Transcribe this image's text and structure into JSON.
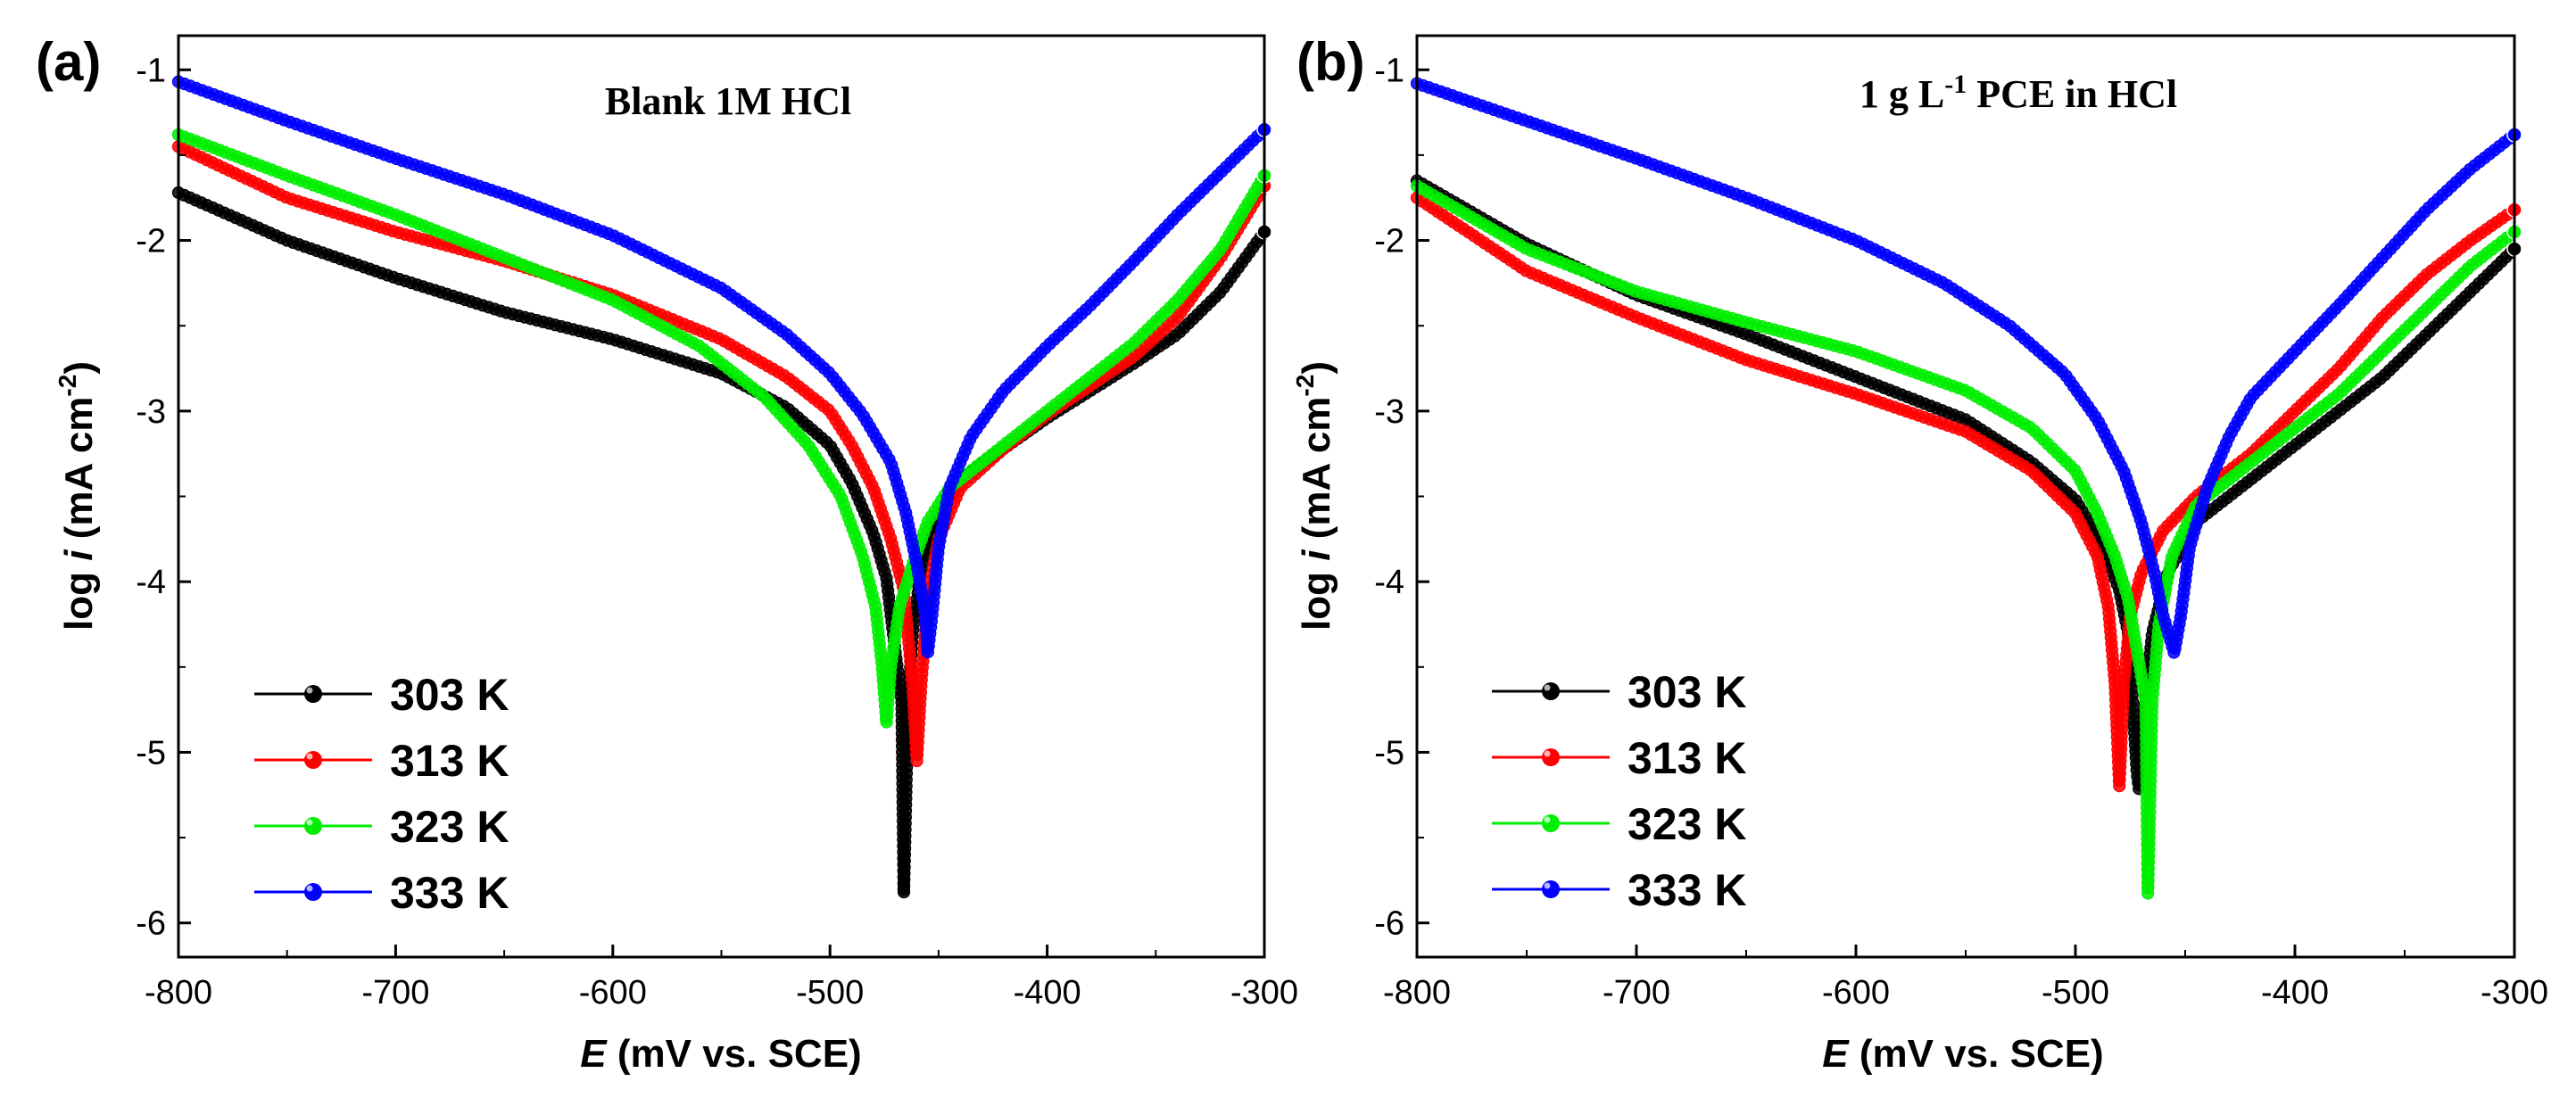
{
  "chart_data": [
    {
      "type": "scatter",
      "panel_label": "(a)",
      "title": "Blank 1M HCl",
      "xlabel_italic": "E",
      "xlabel_rest": " (mV vs. SCE)",
      "ylabel_prefix": "log ",
      "ylabel_italic": "i",
      "ylabel_rest": " (mA cm",
      "ylabel_sup": "-2",
      "ylabel_end": ")",
      "xlim": [
        -800,
        -300
      ],
      "ylim": [
        -6.2,
        -0.8
      ],
      "xticks": [
        -800,
        -700,
        -600,
        -500,
        -400,
        -300
      ],
      "yticks": [
        -6,
        -5,
        -4,
        -3,
        -2,
        -1
      ],
      "xtick_labels": [
        "-800",
        "-700",
        "-600",
        "-500",
        "-400",
        "-300"
      ],
      "ytick_labels": [
        "-6",
        "-5",
        "-4",
        "-3",
        "-2",
        "-1"
      ],
      "legend_position": "bottom-left",
      "series": [
        {
          "name": "303 K",
          "color": "#000000",
          "points": [
            [
              -800,
              -1.72
            ],
            [
              -750,
              -2.0
            ],
            [
              -700,
              -2.22
            ],
            [
              -650,
              -2.42
            ],
            [
              -600,
              -2.58
            ],
            [
              -550,
              -2.78
            ],
            [
              -520,
              -2.98
            ],
            [
              -500,
              -3.2
            ],
            [
              -490,
              -3.42
            ],
            [
              -480,
              -3.72
            ],
            [
              -474,
              -3.98
            ],
            [
              -470,
              -4.4
            ],
            [
              -467,
              -4.7
            ],
            [
              -466,
              -5.83
            ],
            [
              -464,
              -4.7
            ],
            [
              -462,
              -4.3
            ],
            [
              -458,
              -3.92
            ],
            [
              -450,
              -3.6
            ],
            [
              -440,
              -3.4
            ],
            [
              -420,
              -3.22
            ],
            [
              -400,
              -3.04
            ],
            [
              -380,
              -2.88
            ],
            [
              -360,
              -2.72
            ],
            [
              -340,
              -2.55
            ],
            [
              -320,
              -2.3
            ],
            [
              -300,
              -1.95
            ]
          ]
        },
        {
          "name": "313 K",
          "color": "#ff0000",
          "points": [
            [
              -800,
              -1.45
            ],
            [
              -750,
              -1.75
            ],
            [
              -700,
              -1.95
            ],
            [
              -650,
              -2.12
            ],
            [
              -600,
              -2.32
            ],
            [
              -550,
              -2.58
            ],
            [
              -520,
              -2.8
            ],
            [
              -500,
              -3.0
            ],
            [
              -490,
              -3.2
            ],
            [
              -480,
              -3.45
            ],
            [
              -472,
              -3.75
            ],
            [
              -466,
              -4.05
            ],
            [
              -462,
              -4.6
            ],
            [
              -460,
              -5.05
            ],
            [
              -458,
              -4.6
            ],
            [
              -455,
              -4.1
            ],
            [
              -450,
              -3.75
            ],
            [
              -440,
              -3.45
            ],
            [
              -420,
              -3.22
            ],
            [
              -400,
              -3.02
            ],
            [
              -380,
              -2.85
            ],
            [
              -360,
              -2.68
            ],
            [
              -340,
              -2.45
            ],
            [
              -320,
              -2.1
            ],
            [
              -300,
              -1.68
            ]
          ]
        },
        {
          "name": "323 K",
          "color": "#00ee00",
          "points": [
            [
              -800,
              -1.38
            ],
            [
              -750,
              -1.62
            ],
            [
              -700,
              -1.85
            ],
            [
              -650,
              -2.1
            ],
            [
              -600,
              -2.35
            ],
            [
              -560,
              -2.62
            ],
            [
              -530,
              -2.92
            ],
            [
              -510,
              -3.2
            ],
            [
              -495,
              -3.5
            ],
            [
              -485,
              -3.85
            ],
            [
              -479,
              -4.15
            ],
            [
              -476,
              -4.5
            ],
            [
              -474,
              -4.83
            ],
            [
              -472,
              -4.5
            ],
            [
              -468,
              -4.15
            ],
            [
              -462,
              -3.9
            ],
            [
              -455,
              -3.65
            ],
            [
              -445,
              -3.45
            ],
            [
              -420,
              -3.2
            ],
            [
              -400,
              -3.0
            ],
            [
              -380,
              -2.8
            ],
            [
              -360,
              -2.6
            ],
            [
              -340,
              -2.35
            ],
            [
              -320,
              -2.05
            ],
            [
              -300,
              -1.62
            ]
          ]
        },
        {
          "name": "333 K",
          "color": "#0000ff",
          "points": [
            [
              -800,
              -1.07
            ],
            [
              -750,
              -1.3
            ],
            [
              -700,
              -1.52
            ],
            [
              -650,
              -1.73
            ],
            [
              -600,
              -1.97
            ],
            [
              -550,
              -2.28
            ],
            [
              -520,
              -2.55
            ],
            [
              -500,
              -2.78
            ],
            [
              -485,
              -3.02
            ],
            [
              -472,
              -3.3
            ],
            [
              -465,
              -3.6
            ],
            [
              -460,
              -3.9
            ],
            [
              -456,
              -4.2
            ],
            [
              -455,
              -4.42
            ],
            [
              -453,
              -4.2
            ],
            [
              -450,
              -3.8
            ],
            [
              -445,
              -3.45
            ],
            [
              -435,
              -3.15
            ],
            [
              -420,
              -2.88
            ],
            [
              -400,
              -2.62
            ],
            [
              -380,
              -2.38
            ],
            [
              -360,
              -2.12
            ],
            [
              -340,
              -1.85
            ],
            [
              -320,
              -1.6
            ],
            [
              -300,
              -1.35
            ]
          ]
        }
      ]
    },
    {
      "type": "scatter",
      "panel_label": "(b)",
      "title_pre": "1 g L",
      "title_sup": "-1",
      "title_post": " PCE in HCl",
      "xlabel_italic": "E",
      "xlabel_rest": " (mV vs. SCE)",
      "ylabel_prefix": "log ",
      "ylabel_italic": "i",
      "ylabel_rest": " (mA cm",
      "ylabel_sup": "-2",
      "ylabel_end": ")",
      "xlim": [
        -800,
        -300
      ],
      "ylim": [
        -6.2,
        -0.8
      ],
      "xticks": [
        -800,
        -700,
        -600,
        -500,
        -400,
        -300
      ],
      "yticks": [
        -6,
        -5,
        -4,
        -3,
        -2,
        -1
      ],
      "xtick_labels": [
        "-800",
        "-700",
        "-600",
        "-500",
        "-400",
        "-300"
      ],
      "ytick_labels": [
        "-6",
        "-5",
        "-4",
        "-3",
        "-2",
        "-1"
      ],
      "legend_position": "bottom-left",
      "series": [
        {
          "name": "303 K",
          "color": "#000000",
          "points": [
            [
              -800,
              -1.65
            ],
            [
              -750,
              -2.02
            ],
            [
              -700,
              -2.32
            ],
            [
              -650,
              -2.55
            ],
            [
              -600,
              -2.8
            ],
            [
              -550,
              -3.05
            ],
            [
              -520,
              -3.3
            ],
            [
              -500,
              -3.52
            ],
            [
              -488,
              -3.78
            ],
            [
              -480,
              -4.05
            ],
            [
              -476,
              -4.3
            ],
            [
              -474,
              -4.7
            ],
            [
              -472,
              -5.12
            ],
            [
              -471,
              -5.22
            ],
            [
              -469,
              -4.8
            ],
            [
              -465,
              -4.3
            ],
            [
              -458,
              -3.95
            ],
            [
              -445,
              -3.65
            ],
            [
              -420,
              -3.4
            ],
            [
              -400,
              -3.2
            ],
            [
              -380,
              -3.0
            ],
            [
              -360,
              -2.8
            ],
            [
              -340,
              -2.55
            ],
            [
              -320,
              -2.3
            ],
            [
              -300,
              -2.05
            ]
          ]
        },
        {
          "name": "313 K",
          "color": "#ff0000",
          "points": [
            [
              -800,
              -1.75
            ],
            [
              -750,
              -2.18
            ],
            [
              -700,
              -2.45
            ],
            [
              -650,
              -2.7
            ],
            [
              -600,
              -2.9
            ],
            [
              -550,
              -3.12
            ],
            [
              -520,
              -3.35
            ],
            [
              -500,
              -3.6
            ],
            [
              -490,
              -3.85
            ],
            [
              -485,
              -4.15
            ],
            [
              -482,
              -4.6
            ],
            [
              -480,
              -5.2
            ],
            [
              -478,
              -4.6
            ],
            [
              -475,
              -4.2
            ],
            [
              -470,
              -3.95
            ],
            [
              -460,
              -3.7
            ],
            [
              -445,
              -3.5
            ],
            [
              -420,
              -3.25
            ],
            [
              -400,
              -3.0
            ],
            [
              -380,
              -2.75
            ],
            [
              -360,
              -2.45
            ],
            [
              -340,
              -2.2
            ],
            [
              -320,
              -2.0
            ],
            [
              -300,
              -1.82
            ]
          ]
        },
        {
          "name": "323 K",
          "color": "#00ee00",
          "points": [
            [
              -800,
              -1.68
            ],
            [
              -750,
              -2.05
            ],
            [
              -700,
              -2.3
            ],
            [
              -650,
              -2.48
            ],
            [
              -600,
              -2.65
            ],
            [
              -550,
              -2.88
            ],
            [
              -520,
              -3.1
            ],
            [
              -500,
              -3.35
            ],
            [
              -490,
              -3.6
            ],
            [
              -482,
              -3.85
            ],
            [
              -476,
              -4.1
            ],
            [
              -472,
              -4.4
            ],
            [
              -468,
              -4.7
            ],
            [
              -467,
              -5.83
            ],
            [
              -465,
              -4.7
            ],
            [
              -462,
              -4.25
            ],
            [
              -456,
              -3.85
            ],
            [
              -445,
              -3.55
            ],
            [
              -420,
              -3.3
            ],
            [
              -400,
              -3.1
            ],
            [
              -380,
              -2.9
            ],
            [
              -360,
              -2.65
            ],
            [
              -340,
              -2.4
            ],
            [
              -320,
              -2.15
            ],
            [
              -300,
              -1.95
            ]
          ]
        },
        {
          "name": "333 K",
          "color": "#0000ff",
          "points": [
            [
              -800,
              -1.08
            ],
            [
              -750,
              -1.3
            ],
            [
              -700,
              -1.52
            ],
            [
              -650,
              -1.75
            ],
            [
              -600,
              -2.0
            ],
            [
              -560,
              -2.25
            ],
            [
              -530,
              -2.5
            ],
            [
              -505,
              -2.78
            ],
            [
              -490,
              -3.05
            ],
            [
              -478,
              -3.35
            ],
            [
              -470,
              -3.65
            ],
            [
              -464,
              -3.95
            ],
            [
              -460,
              -4.2
            ],
            [
              -455,
              -4.42
            ],
            [
              -452,
              -4.2
            ],
            [
              -448,
              -3.8
            ],
            [
              -440,
              -3.45
            ],
            [
              -430,
              -3.15
            ],
            [
              -420,
              -2.92
            ],
            [
              -400,
              -2.65
            ],
            [
              -380,
              -2.38
            ],
            [
              -360,
              -2.1
            ],
            [
              -340,
              -1.82
            ],
            [
              -320,
              -1.58
            ],
            [
              -300,
              -1.38
            ]
          ]
        }
      ]
    }
  ]
}
